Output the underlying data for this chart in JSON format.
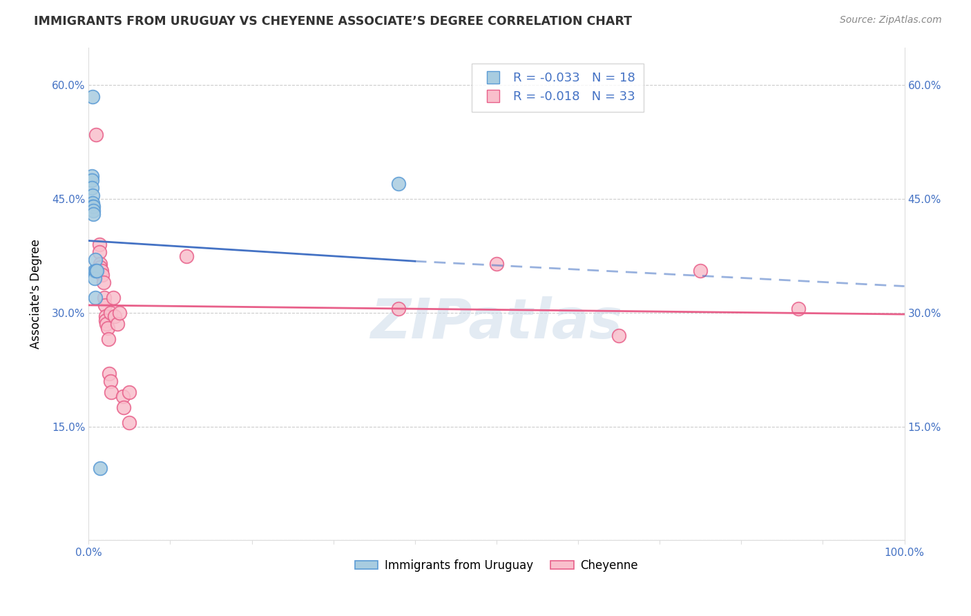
{
  "title": "IMMIGRANTS FROM URUGUAY VS CHEYENNE ASSOCIATE’S DEGREE CORRELATION CHART",
  "source": "Source: ZipAtlas.com",
  "ylabel": "Associate's Degree",
  "legend_label1": "Immigrants from Uruguay",
  "legend_label2": "Cheyenne",
  "R1": "-0.033",
  "N1": "18",
  "R2": "-0.018",
  "N2": "33",
  "blue_color": "#a8cce0",
  "pink_color": "#f9bfcc",
  "blue_edge": "#5b9bd5",
  "pink_edge": "#e8608a",
  "line_blue": "#4472c4",
  "line_pink": "#e8608a",
  "watermark": "ZIPatlas",
  "xlim": [
    0.0,
    1.0
  ],
  "ylim": [
    0.0,
    0.65
  ],
  "yticks": [
    0.0,
    0.15,
    0.3,
    0.45,
    0.6
  ],
  "ytick_labels": [
    "",
    "15.0%",
    "30.0%",
    "45.0%",
    "60.0%"
  ],
  "xticks": [
    0.0,
    0.1,
    0.2,
    0.3,
    0.4,
    0.5,
    0.6,
    0.7,
    0.8,
    0.9,
    1.0
  ],
  "xtick_labels": [
    "0.0%",
    "",
    "",
    "",
    "",
    "",
    "",
    "",
    "",
    "",
    "100.0%"
  ],
  "blue_x": [
    0.005,
    0.004,
    0.004,
    0.004,
    0.005,
    0.005,
    0.005,
    0.006,
    0.006,
    0.006,
    0.007,
    0.007,
    0.008,
    0.008,
    0.009,
    0.01,
    0.38,
    0.014
  ],
  "blue_y": [
    0.585,
    0.48,
    0.475,
    0.465,
    0.455,
    0.445,
    0.44,
    0.44,
    0.435,
    0.43,
    0.355,
    0.345,
    0.37,
    0.32,
    0.355,
    0.355,
    0.47,
    0.095
  ],
  "pink_x": [
    0.009,
    0.013,
    0.013,
    0.014,
    0.014,
    0.016,
    0.017,
    0.018,
    0.019,
    0.02,
    0.021,
    0.021,
    0.022,
    0.023,
    0.024,
    0.025,
    0.027,
    0.027,
    0.028,
    0.03,
    0.032,
    0.035,
    0.038,
    0.042,
    0.043,
    0.05,
    0.05,
    0.12,
    0.38,
    0.5,
    0.65,
    0.75,
    0.87
  ],
  "pink_y": [
    0.535,
    0.39,
    0.38,
    0.365,
    0.36,
    0.355,
    0.35,
    0.34,
    0.32,
    0.31,
    0.295,
    0.29,
    0.285,
    0.28,
    0.265,
    0.22,
    0.21,
    0.3,
    0.195,
    0.32,
    0.295,
    0.285,
    0.3,
    0.19,
    0.175,
    0.195,
    0.155,
    0.375,
    0.305,
    0.365,
    0.27,
    0.355,
    0.305
  ],
  "blue_line_x0": 0.0,
  "blue_line_y0": 0.395,
  "blue_line_x1": 0.4,
  "blue_line_y1": 0.368,
  "blue_line_x2": 1.0,
  "blue_line_y2": 0.335,
  "pink_line_x0": 0.0,
  "pink_line_y0": 0.31,
  "pink_line_x1": 1.0,
  "pink_line_y1": 0.298
}
